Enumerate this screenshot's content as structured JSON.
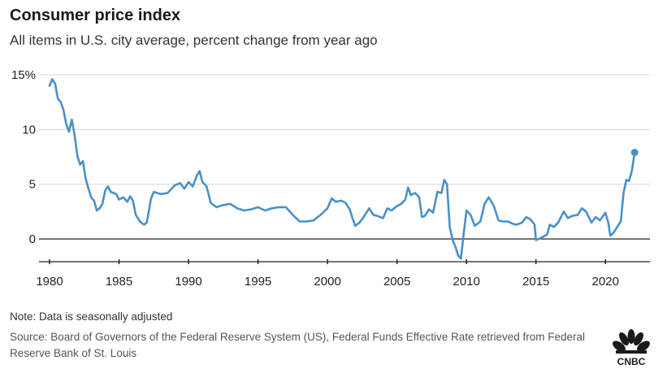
{
  "header": {
    "title": "Consumer price index",
    "subtitle": "All items in U.S. city average, percent change from year ago"
  },
  "footer": {
    "note": "Note: Data is seasonally adjusted",
    "source": "Source: Board of Governors of the Federal Reserve System (US), Federal Funds Effective Rate retrieved from Federal Reserve Bank of St. Louis",
    "logo_text": "CNBC"
  },
  "colors": {
    "line": "#4a90c8",
    "axis": "#222222",
    "grid": "#d8d8d8",
    "text": "#222222"
  },
  "chart_data": {
    "type": "line",
    "title": "Consumer price index",
    "subtitle": "All items in U.S. city average, percent change from year ago",
    "xlabel": "",
    "ylabel": "",
    "xlim": [
      1980,
      2022.5
    ],
    "ylim": [
      -2.5,
      15
    ],
    "y_ticks": [
      0,
      5,
      10,
      15
    ],
    "y_tick_labels": [
      "0",
      "5",
      "10",
      "15%"
    ],
    "x_ticks": [
      1980,
      1985,
      1990,
      1995,
      2000,
      2005,
      2010,
      2015,
      2020
    ],
    "x_tick_labels": [
      "1980",
      "1985",
      "1990",
      "1995",
      "2000",
      "2005",
      "2010",
      "2015",
      "2020"
    ],
    "grid": "horizontal",
    "end_marker": true,
    "series": [
      {
        "x": [
          1980.0,
          1980.2,
          1980.4,
          1980.6,
          1980.8,
          1981.0,
          1981.2,
          1981.4,
          1981.6,
          1981.8,
          1982.0,
          1982.2,
          1982.4,
          1982.6,
          1982.8,
          1983.0,
          1983.2,
          1983.4,
          1983.6,
          1983.8,
          1984.0,
          1984.2,
          1984.4,
          1984.6,
          1984.8,
          1985.0,
          1985.3,
          1985.6,
          1985.8,
          1986.0,
          1986.2,
          1986.5,
          1986.8,
          1987.0,
          1987.3,
          1987.5,
          1988.0,
          1988.5,
          1989.0,
          1989.4,
          1989.7,
          1990.0,
          1990.3,
          1990.6,
          1990.8,
          1991.0,
          1991.3,
          1991.6,
          1992.0,
          1992.5,
          1993.0,
          1993.5,
          1994.0,
          1994.5,
          1995.0,
          1995.5,
          1996.0,
          1996.5,
          1997.0,
          1997.5,
          1998.0,
          1998.5,
          1999.0,
          1999.5,
          2000.0,
          2000.3,
          2000.6,
          2001.0,
          2001.3,
          2001.6,
          2001.8,
          2002.0,
          2002.3,
          2002.6,
          2003.0,
          2003.3,
          2003.6,
          2004.0,
          2004.3,
          2004.6,
          2005.0,
          2005.3,
          2005.6,
          2005.8,
          2006.0,
          2006.3,
          2006.6,
          2006.8,
          2007.0,
          2007.3,
          2007.6,
          2007.9,
          2008.2,
          2008.4,
          2008.6,
          2008.8,
          2009.0,
          2009.2,
          2009.4,
          2009.6,
          2009.8,
          2010.0,
          2010.3,
          2010.6,
          2011.0,
          2011.3,
          2011.6,
          2011.8,
          2012.0,
          2012.3,
          2012.6,
          2013.0,
          2013.3,
          2013.6,
          2014.0,
          2014.3,
          2014.6,
          2014.9,
          2015.0,
          2015.2,
          2015.5,
          2015.8,
          2016.0,
          2016.3,
          2016.6,
          2017.0,
          2017.3,
          2017.6,
          2018.0,
          2018.3,
          2018.6,
          2019.0,
          2019.3,
          2019.6,
          2020.0,
          2020.2,
          2020.35,
          2020.6,
          2020.9,
          2021.1,
          2021.3,
          2021.5,
          2021.7,
          2021.9,
          2022.1
        ],
        "y": [
          14.0,
          14.6,
          14.2,
          12.8,
          12.5,
          11.8,
          10.5,
          9.8,
          10.9,
          9.5,
          7.6,
          6.8,
          7.1,
          5.5,
          4.6,
          3.8,
          3.5,
          2.6,
          2.8,
          3.2,
          4.4,
          4.8,
          4.3,
          4.2,
          4.1,
          3.6,
          3.8,
          3.4,
          3.9,
          3.5,
          2.2,
          1.6,
          1.3,
          1.5,
          3.7,
          4.3,
          4.1,
          4.2,
          4.9,
          5.1,
          4.6,
          5.2,
          4.8,
          5.8,
          6.2,
          5.2,
          4.8,
          3.3,
          2.9,
          3.1,
          3.2,
          2.8,
          2.6,
          2.7,
          2.9,
          2.6,
          2.8,
          2.9,
          2.9,
          2.2,
          1.6,
          1.6,
          1.7,
          2.2,
          2.8,
          3.7,
          3.4,
          3.5,
          3.3,
          2.7,
          1.9,
          1.2,
          1.5,
          2.0,
          2.8,
          2.2,
          2.1,
          1.9,
          2.8,
          2.6,
          3.0,
          3.2,
          3.6,
          4.7,
          4.0,
          4.2,
          3.8,
          2.0,
          2.1,
          2.7,
          2.4,
          4.3,
          4.2,
          5.4,
          5.0,
          1.1,
          -0.1,
          -0.7,
          -1.5,
          -1.8,
          0.5,
          2.6,
          2.2,
          1.2,
          1.6,
          3.2,
          3.8,
          3.4,
          2.9,
          1.7,
          1.6,
          1.6,
          1.4,
          1.3,
          1.5,
          2.0,
          1.8,
          1.3,
          -0.1,
          0.0,
          0.2,
          0.4,
          1.3,
          1.1,
          1.5,
          2.5,
          1.9,
          2.1,
          2.2,
          2.8,
          2.5,
          1.5,
          2.0,
          1.7,
          2.4,
          1.5,
          0.3,
          0.6,
          1.2,
          1.6,
          4.2,
          5.4,
          5.3,
          6.2,
          7.9
        ]
      }
    ]
  }
}
